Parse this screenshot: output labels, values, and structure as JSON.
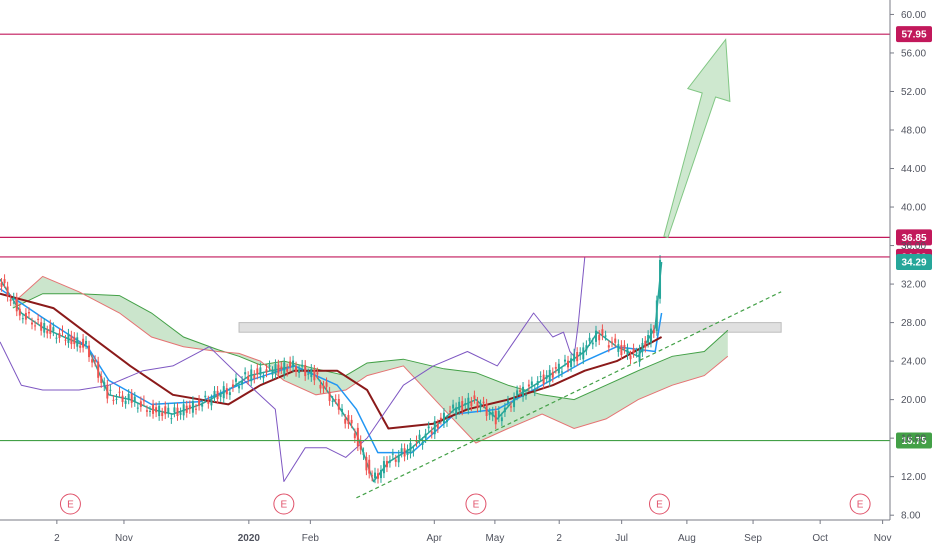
{
  "chart_data": {
    "type": "candlestick",
    "y_axis": {
      "range": [
        7.5,
        61.5
      ],
      "ticks": [
        "8.00",
        "12.00",
        "16.00",
        "20.00",
        "24.00",
        "28.00",
        "32.00",
        "36.00",
        "40.00",
        "44.00",
        "48.00",
        "52.00",
        "56.00",
        "60.00"
      ]
    },
    "x_axis": {
      "tick_labels": [
        "2",
        "Nov",
        "2020",
        "Feb",
        "Apr",
        "May",
        "2",
        "Jul",
        "Aug",
        "Sep",
        "Oct",
        "Nov"
      ],
      "range": [
        "2019-09-25",
        "2020-11-15"
      ]
    },
    "horizontal_lines": [
      {
        "value": 57.95,
        "label": "57.95",
        "color": "#c2185b"
      },
      {
        "value": 36.85,
        "label": "36.85",
        "color": "#c2185b"
      },
      {
        "value": 34.82,
        "label": "34.82",
        "color": "#c2185b"
      },
      {
        "value": 15.75,
        "label": "15.75",
        "color": "#43a047"
      }
    ],
    "last_price": {
      "value": 34.29,
      "label": "34.29",
      "color": "#26a69a"
    },
    "resistance_zone": {
      "low": 27.0,
      "high": 28.0,
      "from": "2020-01-15",
      "to": "2020-09-25"
    },
    "trendline": {
      "from": {
        "date": "2020-03-10",
        "value": 9.8
      },
      "to": {
        "date": "2020-09-25",
        "value": 31.2
      },
      "color": "#43a047",
      "style": "dashed"
    },
    "projection_arrow": {
      "from": {
        "date": "2020-08-02",
        "value": 36.9
      },
      "to": {
        "date": "2020-08-30",
        "value": 57.4
      },
      "color": "#a5d6a7"
    },
    "earnings_markers": {
      "label": "E",
      "dates": [
        "2019-10-28",
        "2020-02-05",
        "2020-05-05",
        "2020-07-30",
        "2020-11-01"
      ]
    },
    "cloud_upper": {
      "dates": [
        "2019-10-01",
        "2019-10-15",
        "2019-11-01",
        "2019-11-20",
        "2019-12-05",
        "2019-12-20",
        "2020-01-05",
        "2020-01-15",
        "2020-01-25",
        "2020-02-05",
        "2020-02-20",
        "2020-03-05",
        "2020-03-15",
        "2020-04-01",
        "2020-04-20",
        "2020-05-05",
        "2020-05-20",
        "2020-06-05",
        "2020-06-20",
        "2020-07-05",
        "2020-07-20",
        "2020-08-05",
        "2020-08-20",
        "2020-08-31"
      ],
      "values": [
        29.5,
        31.0,
        31.0,
        30.8,
        29.0,
        26.5,
        25.2,
        24.5,
        23.6,
        24.0,
        23.2,
        22.5,
        23.8,
        24.2,
        23.2,
        22.8,
        21.5,
        20.5,
        20.0,
        21.5,
        23.0,
        24.5,
        25.0,
        27.2
      ]
    },
    "cloud_lower": {
      "dates": [
        "2019-10-01",
        "2019-10-15",
        "2019-11-01",
        "2019-11-20",
        "2019-12-05",
        "2019-12-20",
        "2020-01-05",
        "2020-01-15",
        "2020-01-25",
        "2020-02-05",
        "2020-02-20",
        "2020-03-05",
        "2020-03-15",
        "2020-04-01",
        "2020-04-20",
        "2020-05-05",
        "2020-05-20",
        "2020-06-05",
        "2020-06-20",
        "2020-07-05",
        "2020-07-20",
        "2020-08-05",
        "2020-08-20",
        "2020-08-31"
      ],
      "values": [
        30.0,
        32.8,
        31.2,
        29.0,
        26.5,
        25.5,
        25.0,
        24.8,
        24.0,
        22.0,
        20.5,
        21.0,
        22.5,
        23.5,
        19.0,
        15.5,
        17.0,
        18.5,
        17.0,
        18.0,
        20.0,
        21.5,
        22.5,
        24.5
      ]
    },
    "series": [
      {
        "name": "",
        "role": "close",
        "color": "#26a69a",
        "dates": [
          "2019-09-25",
          "2019-10-05",
          "2019-10-15",
          "2019-10-25",
          "2019-11-05",
          "2019-11-15",
          "2019-11-25",
          "2019-12-05",
          "2019-12-15",
          "2019-12-28",
          "2020-01-10",
          "2020-01-20",
          "2020-01-30",
          "2020-02-10",
          "2020-02-20",
          "2020-03-01",
          "2020-03-10",
          "2020-03-18",
          "2020-03-25",
          "2020-04-05",
          "2020-04-15",
          "2020-04-25",
          "2020-05-05",
          "2020-05-15",
          "2020-05-25",
          "2020-06-05",
          "2020-06-15",
          "2020-06-25",
          "2020-07-01",
          "2020-07-10",
          "2020-07-20",
          "2020-07-28",
          "2020-07-31"
        ],
        "values": [
          32.5,
          29.0,
          27.5,
          26.5,
          25.5,
          20.5,
          20.0,
          19.0,
          18.5,
          19.5,
          21.0,
          22.5,
          23.0,
          23.5,
          22.5,
          19.5,
          16.5,
          11.5,
          13.5,
          15.0,
          17.0,
          19.0,
          20.0,
          18.0,
          20.5,
          22.0,
          23.5,
          25.0,
          27.0,
          25.5,
          24.5,
          27.5,
          34.29
        ]
      },
      {
        "name": "",
        "role": "tenkan",
        "color": "#2196f3",
        "dates": [
          "2019-09-25",
          "2019-10-15",
          "2019-11-05",
          "2019-11-15",
          "2019-12-05",
          "2019-12-28",
          "2020-01-20",
          "2020-02-10",
          "2020-03-01",
          "2020-03-10",
          "2020-03-20",
          "2020-04-05",
          "2020-04-25",
          "2020-05-15",
          "2020-06-05",
          "2020-06-25",
          "2020-07-10",
          "2020-07-28",
          "2020-07-31"
        ],
        "values": [
          31.5,
          28.5,
          25.5,
          22.0,
          19.5,
          19.8,
          22.0,
          23.5,
          21.5,
          19.0,
          14.5,
          14.5,
          18.5,
          19.0,
          21.5,
          24.0,
          25.5,
          25.0,
          29.0
        ]
      },
      {
        "name": "",
        "role": "kijun",
        "color": "#8b1a1a",
        "dates": [
          "2019-09-25",
          "2019-10-20",
          "2019-11-10",
          "2019-11-25",
          "2019-12-15",
          "2020-01-10",
          "2020-01-25",
          "2020-02-10",
          "2020-03-01",
          "2020-03-15",
          "2020-03-25",
          "2020-04-15",
          "2020-05-01",
          "2020-05-20",
          "2020-06-10",
          "2020-06-25",
          "2020-07-10",
          "2020-07-31"
        ],
        "values": [
          31.0,
          29.5,
          26.0,
          23.5,
          20.5,
          19.5,
          21.5,
          23.0,
          23.0,
          21.0,
          17.0,
          17.5,
          19.0,
          20.0,
          21.5,
          23.0,
          24.0,
          26.5
        ]
      },
      {
        "name": "",
        "role": "lagging",
        "color": "#7e57c2",
        "dates": [
          "2019-09-25",
          "2019-10-05",
          "2019-10-15",
          "2019-11-01",
          "2019-11-15",
          "2019-12-01",
          "2019-12-15",
          "2020-01-01",
          "2020-01-15",
          "2020-02-01",
          "2020-02-05",
          "2020-02-15",
          "2020-02-25",
          "2020-03-05",
          "2020-03-15",
          "2020-04-01",
          "2020-04-15",
          "2020-05-01",
          "2020-05-15",
          "2020-06-01",
          "2020-06-10",
          "2020-06-15",
          "2020-06-18",
          "2020-06-20",
          "2020-06-22",
          "2020-06-25"
        ],
        "values": [
          26.0,
          21.5,
          21.0,
          21.0,
          21.5,
          23.0,
          23.5,
          25.5,
          22.5,
          19.0,
          11.5,
          15.0,
          15.0,
          14.0,
          16.0,
          21.5,
          23.5,
          25.0,
          23.5,
          29.0,
          26.5,
          27.0,
          25.0,
          24.5,
          28.0,
          34.8
        ]
      }
    ]
  }
}
